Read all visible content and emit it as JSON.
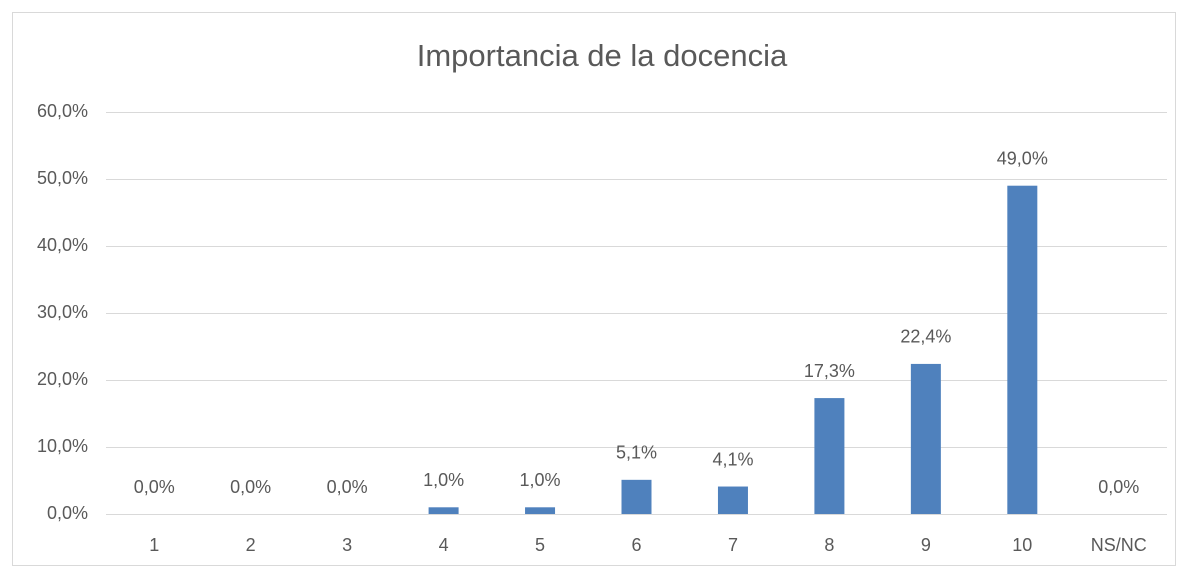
{
  "chart_data": {
    "type": "bar",
    "title": "Importancia de la docencia",
    "categories": [
      "1",
      "2",
      "3",
      "4",
      "5",
      "6",
      "7",
      "8",
      "9",
      "10",
      "NS/NC"
    ],
    "values": [
      0,
      0,
      0,
      1.0,
      1.0,
      5.1,
      4.1,
      17.3,
      22.4,
      49.0,
      0
    ],
    "value_labels": [
      "0,0%",
      "0,0%",
      "0,0%",
      "1,0%",
      "1,0%",
      "5,1%",
      "4,1%",
      "17,3%",
      "22,4%",
      "49,0%",
      "0,0%"
    ],
    "color": "#4f81bd",
    "ylim": [
      0,
      60
    ],
    "yticks": [
      {
        "value": 0,
        "label": "0,0%"
      },
      {
        "value": 10,
        "label": "10,0%"
      },
      {
        "value": 20,
        "label": "20,0%"
      },
      {
        "value": 30,
        "label": "30,0%"
      },
      {
        "value": 40,
        "label": "40,0%"
      },
      {
        "value": 50,
        "label": "50,0%"
      },
      {
        "value": 60,
        "label": "60,0%"
      }
    ],
    "grid": true
  }
}
